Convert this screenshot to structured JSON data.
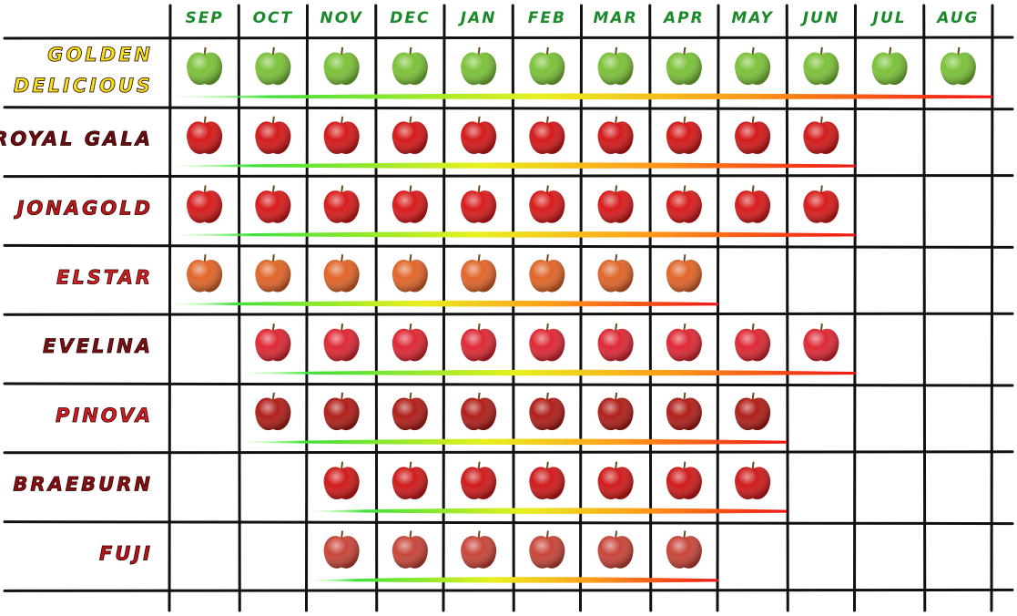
{
  "header": {
    "months": [
      "SEP",
      "OCT",
      "NOV",
      "DEC",
      "JAN",
      "FEB",
      "MAR",
      "APR",
      "MAY",
      "JUN",
      "JUL",
      "AUG"
    ]
  },
  "varieties": [
    {
      "name_lines": [
        "GOLDEN",
        "DELICIOUS"
      ],
      "label_color": "#f2e21c",
      "apple_color": "#7cc23a",
      "available": [
        true,
        true,
        true,
        true,
        true,
        true,
        true,
        true,
        true,
        true,
        true,
        true
      ]
    },
    {
      "name_lines": [
        "ROYAL GALA"
      ],
      "label_color": "#6b0d10",
      "apple_color": "#d41a1a",
      "available": [
        true,
        true,
        true,
        true,
        true,
        true,
        true,
        true,
        true,
        true,
        false,
        false
      ]
    },
    {
      "name_lines": [
        "JONAGOLD"
      ],
      "label_color": "#c0171b",
      "apple_color": "#d81c1c",
      "available": [
        true,
        true,
        true,
        true,
        true,
        true,
        true,
        true,
        true,
        true,
        false,
        false
      ]
    },
    {
      "name_lines": [
        "ELSTAR"
      ],
      "label_color": "#d42020",
      "apple_color": "#e0662a",
      "available": [
        true,
        true,
        true,
        true,
        true,
        true,
        true,
        true,
        false,
        false,
        false,
        false
      ]
    },
    {
      "name_lines": [
        "EVELINA"
      ],
      "label_color": "#7a1014",
      "apple_color": "#de2a35",
      "available": [
        false,
        true,
        true,
        true,
        true,
        true,
        true,
        true,
        true,
        true,
        false,
        false
      ]
    },
    {
      "name_lines": [
        "PINOVA"
      ],
      "label_color": "#d21d22",
      "apple_color": "#b0201a",
      "available": [
        false,
        true,
        true,
        true,
        true,
        true,
        true,
        true,
        true,
        false,
        false,
        false
      ]
    },
    {
      "name_lines": [
        "BRAEBURN"
      ],
      "label_color": "#8a0f12",
      "apple_color": "#cf1c1c",
      "available": [
        false,
        false,
        true,
        true,
        true,
        true,
        true,
        true,
        true,
        false,
        false,
        false
      ]
    },
    {
      "name_lines": [
        "FUJI"
      ],
      "label_color": "#b81418",
      "apple_color": "#c8463a",
      "available": [
        false,
        false,
        true,
        true,
        true,
        true,
        true,
        true,
        false,
        false,
        false,
        false
      ]
    }
  ]
}
